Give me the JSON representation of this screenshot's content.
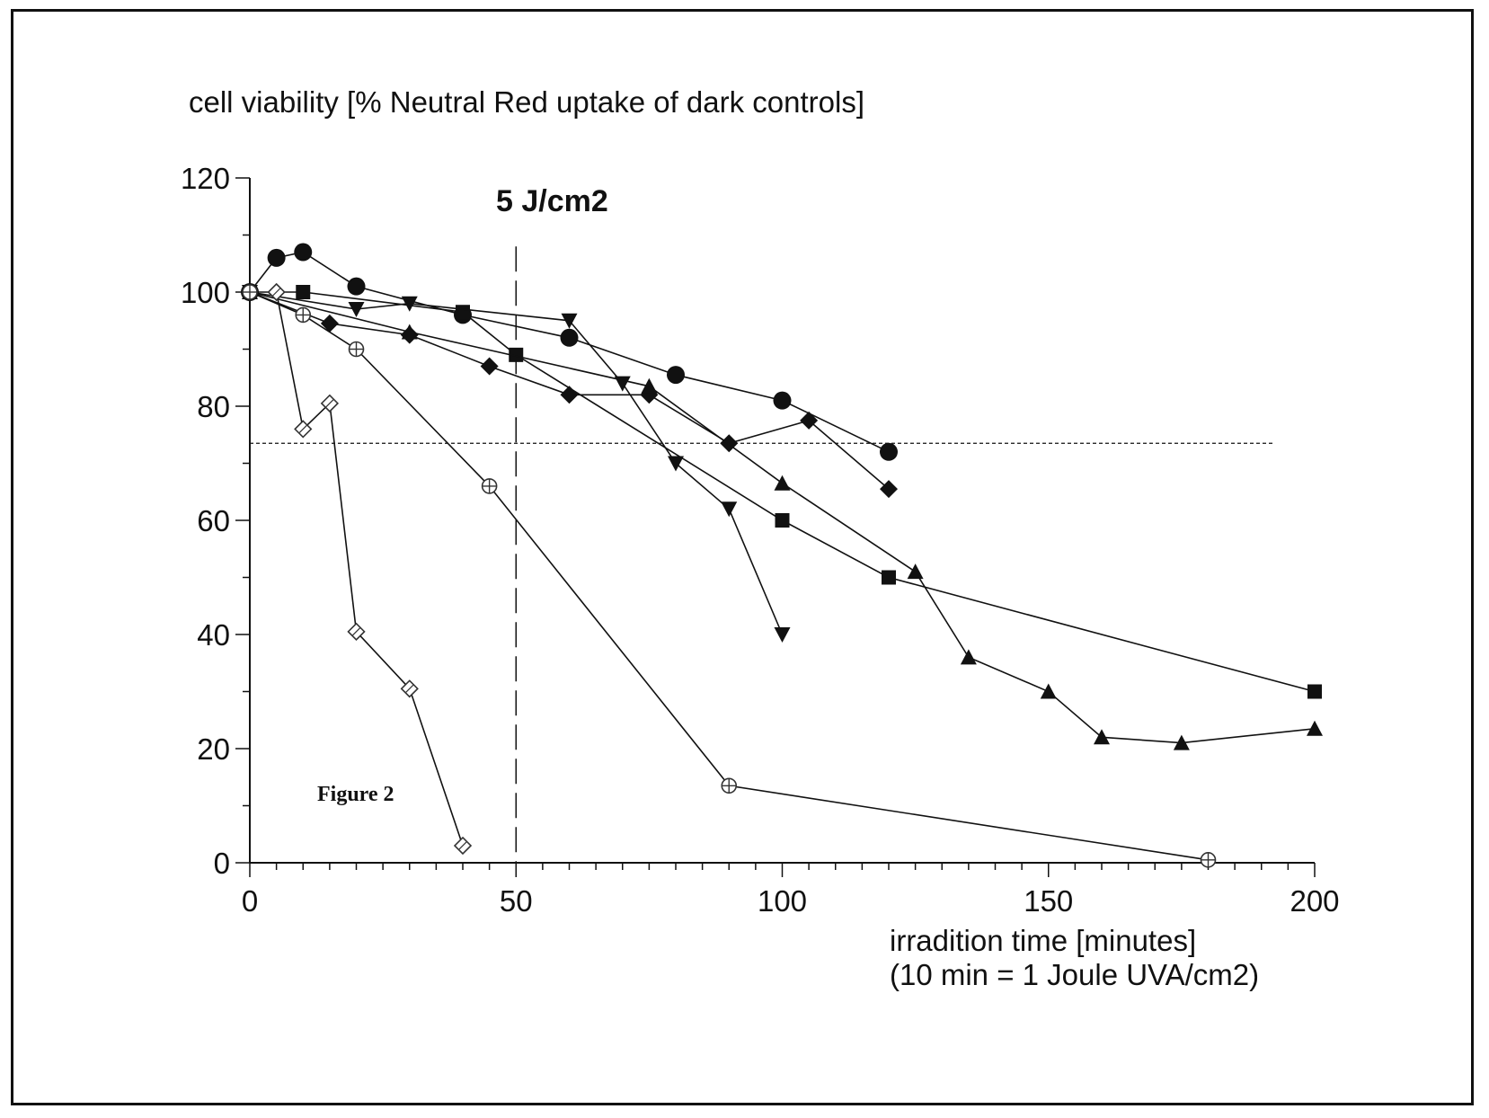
{
  "chart_data": {
    "type": "line",
    "ylabel": "cell viability [% Neutral Red uptake of dark controls]",
    "xlabel_line1": "irradition time [minutes]",
    "xlabel_line2": "(10 min = 1 Joule UVA/cm2)",
    "annotation": "5 J/cm2",
    "caption": "Figure 2",
    "xlim": [
      0,
      200
    ],
    "ylim": [
      0,
      120
    ],
    "x_ticks": [
      0,
      50,
      100,
      150,
      200
    ],
    "y_ticks": [
      0,
      20,
      40,
      60,
      80,
      100,
      120
    ],
    "vline_x": 50,
    "hline_y": 73.5,
    "series": [
      {
        "name": "circle",
        "marker": "circle",
        "x": [
          0,
          5,
          10,
          20,
          40,
          60,
          80,
          100,
          120
        ],
        "y": [
          100,
          106,
          107,
          101,
          96,
          92,
          85.5,
          81,
          72
        ]
      },
      {
        "name": "square",
        "marker": "square",
        "x": [
          0,
          10,
          40,
          50,
          100,
          120,
          200
        ],
        "y": [
          100,
          100,
          96.5,
          89,
          60,
          50,
          30
        ]
      },
      {
        "name": "triangle-down",
        "marker": "triangle-down",
        "x": [
          0,
          20,
          30,
          60,
          70,
          80,
          90,
          100
        ],
        "y": [
          100,
          97,
          98,
          95,
          84,
          70,
          62,
          40
        ]
      },
      {
        "name": "diamond",
        "marker": "diamond",
        "x": [
          0,
          15,
          30,
          45,
          60,
          75,
          90,
          105,
          120
        ],
        "y": [
          100,
          94.5,
          92.5,
          87,
          82,
          82,
          73.5,
          77.5,
          65.5
        ]
      },
      {
        "name": "triangle-up",
        "marker": "triangle-up",
        "x": [
          0,
          30,
          75,
          100,
          125,
          135,
          150,
          160,
          175,
          200
        ],
        "y": [
          100,
          93,
          83.5,
          66.5,
          51,
          36,
          30,
          22,
          21,
          23.5
        ]
      },
      {
        "name": "open-circle-cross",
        "marker": "open-circle",
        "x": [
          0,
          10,
          20,
          45,
          90,
          180
        ],
        "y": [
          100,
          96,
          90,
          66,
          13.5,
          0.5
        ]
      },
      {
        "name": "open-diamond",
        "marker": "open-diamond",
        "x": [
          5,
          10,
          15,
          20,
          30,
          40
        ],
        "y": [
          100,
          76,
          80.5,
          40.5,
          30.5,
          3
        ]
      }
    ]
  }
}
